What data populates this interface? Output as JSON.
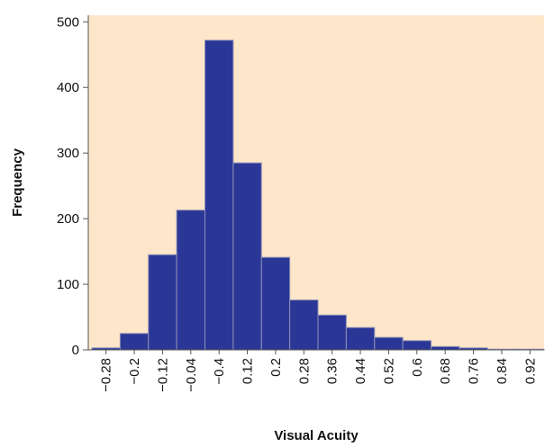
{
  "chart_data": {
    "type": "bar",
    "title": "",
    "xlabel": "Visual Acuity",
    "ylabel": "Frequency",
    "categories": [
      "−0.28",
      "−0.2",
      "−0.12",
      "−0.04",
      "−0.4",
      "0.12",
      "0.2",
      "0.28",
      "0.36",
      "0.44",
      "0.52",
      "0.6",
      "0.68",
      "0.76",
      "0.84",
      "0.92"
    ],
    "values": [
      3,
      25,
      145,
      213,
      472,
      285,
      141,
      76,
      53,
      34,
      19,
      14,
      5,
      3,
      1,
      1
    ],
    "ylim": [
      0,
      510
    ],
    "yticks": [
      "0",
      "100",
      "200",
      "300",
      "400",
      "500"
    ],
    "grid": false,
    "legend": "none"
  },
  "colors": {
    "plot_background": "#fde6c9",
    "bar_fill": "#2b3797",
    "bar_stroke": "#8c8fb5",
    "axis": "#555555",
    "text": "#111111"
  }
}
